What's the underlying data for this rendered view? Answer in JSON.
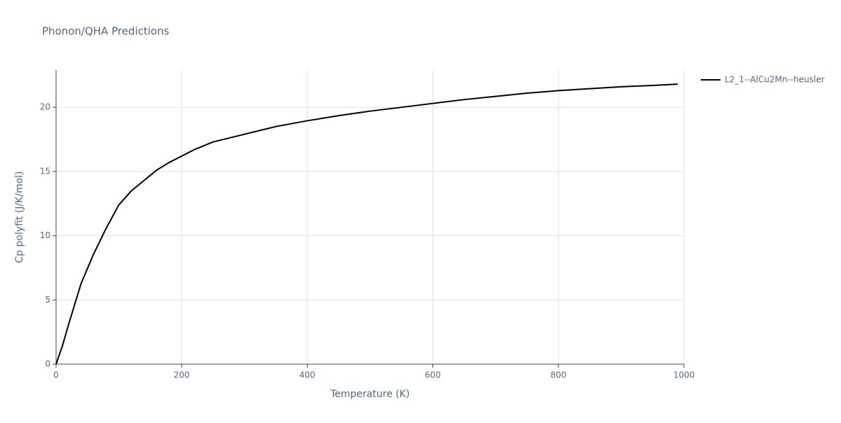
{
  "chart_data": {
    "type": "line",
    "title": "Phonon/QHA Predictions",
    "x_label": "Temperature (K)",
    "y_label": "Cp polyfit (J/K/mol)",
    "x": [
      0,
      10,
      20,
      40,
      60,
      80,
      100,
      120,
      140,
      160,
      180,
      200,
      220,
      250,
      300,
      350,
      400,
      450,
      500,
      550,
      600,
      650,
      700,
      750,
      800,
      850,
      900,
      950,
      990
    ],
    "series": [
      {
        "name": "L2_1--AlCu2Mn--heusler",
        "color": "#000000",
        "values": [
          0,
          1.4,
          3.1,
          6.3,
          8.6,
          10.6,
          12.4,
          13.5,
          14.3,
          15.1,
          15.7,
          16.2,
          16.7,
          17.3,
          17.9,
          18.5,
          18.95,
          19.35,
          19.7,
          20.0,
          20.3,
          20.6,
          20.85,
          21.1,
          21.3,
          21.45,
          21.6,
          21.7,
          21.8
        ]
      }
    ],
    "xlim": [
      0,
      1000
    ],
    "ylim": [
      0,
      22.9
    ],
    "xticks": [
      0,
      200,
      400,
      600,
      800,
      1000
    ],
    "yticks": [
      0,
      5,
      10,
      15,
      20
    ],
    "grid": true,
    "legend": "right"
  }
}
